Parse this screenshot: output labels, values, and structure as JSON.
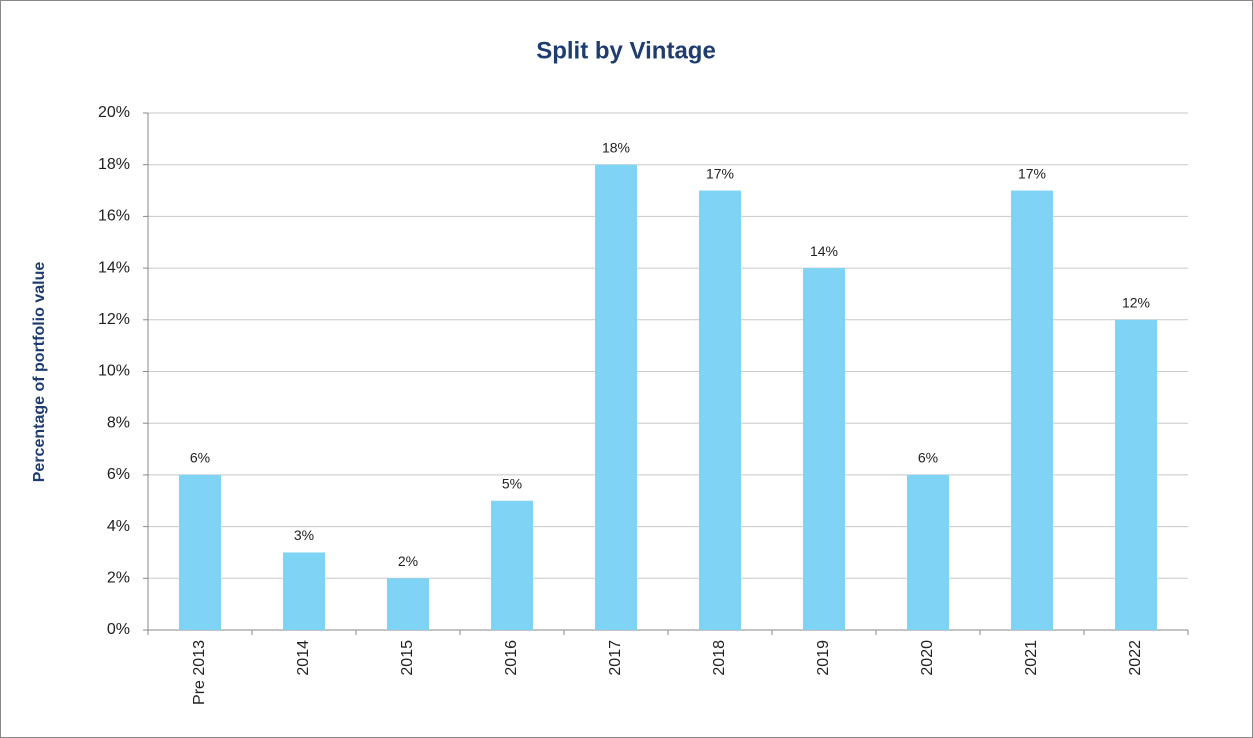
{
  "chart_data": {
    "type": "bar",
    "title": "Split by Vintage",
    "y_label": "Percentage of portfolio value",
    "categories": [
      "Pre 2013",
      "2014",
      "2015",
      "2016",
      "2017",
      "2018",
      "2019",
      "2020",
      "2021",
      "2022"
    ],
    "values": [
      6,
      3,
      2,
      5,
      18,
      17,
      14,
      6,
      17,
      12
    ],
    "value_labels": [
      "6%",
      "3%",
      "2%",
      "5%",
      "18%",
      "17%",
      "14%",
      "6%",
      "17%",
      "12%"
    ],
    "color": "#7fd3f5",
    "ylim": [
      0,
      20
    ],
    "yticks": [
      {
        "value": 0,
        "label": "0%"
      },
      {
        "value": 2,
        "label": "2%"
      },
      {
        "value": 4,
        "label": "4%"
      },
      {
        "value": 6,
        "label": "6%"
      },
      {
        "value": 8,
        "label": "8%"
      },
      {
        "value": 10,
        "label": "10%"
      },
      {
        "value": 12,
        "label": "12%"
      },
      {
        "value": 14,
        "label": "14%"
      },
      {
        "value": 16,
        "label": "16%"
      },
      {
        "value": 18,
        "label": "18%"
      },
      {
        "value": 20,
        "label": "20%"
      }
    ],
    "grid": true
  }
}
